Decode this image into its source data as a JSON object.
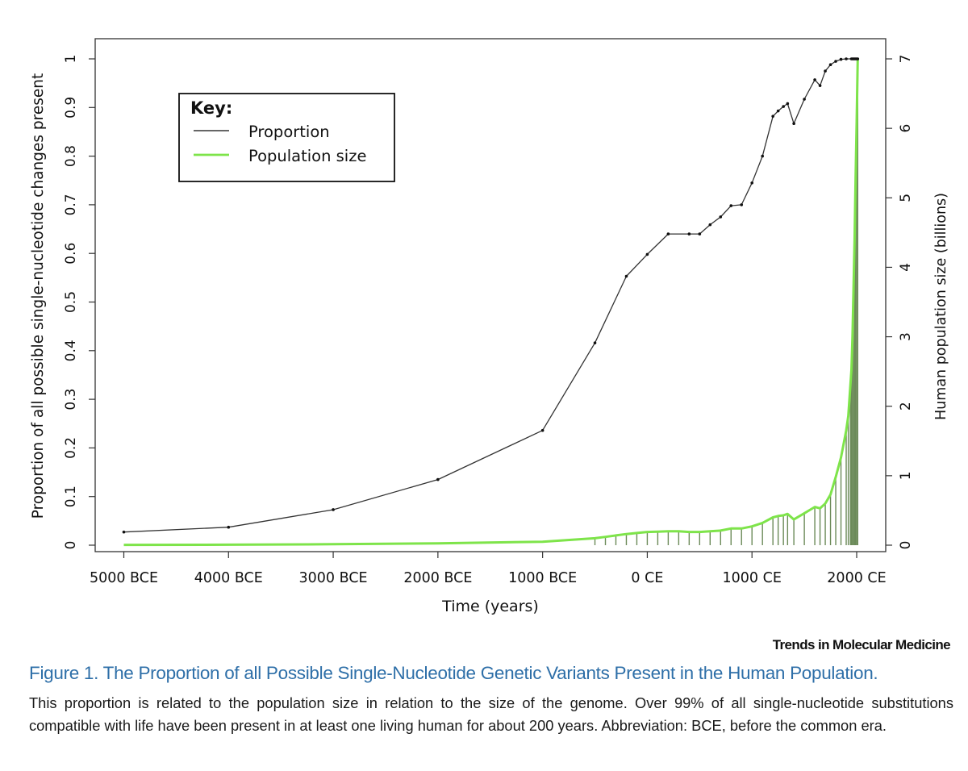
{
  "chart_data": {
    "type": "line",
    "xlabel": "Time (years)",
    "ylabel_left": "Proportion of all possible single-nucleotide changes present",
    "ylabel_right": "Human population size (billions)",
    "x_ticks": [
      {
        "value": -5000,
        "label": "5000 BCE"
      },
      {
        "value": -4000,
        "label": "4000 BCE"
      },
      {
        "value": -3000,
        "label": "3000 BCE"
      },
      {
        "value": -2000,
        "label": "2000 BCE"
      },
      {
        "value": -1000,
        "label": "1000 BCE"
      },
      {
        "value": 0,
        "label": "0 CE"
      },
      {
        "value": 1000,
        "label": "1000 CE"
      },
      {
        "value": 2000,
        "label": "2000 CE"
      }
    ],
    "xlim": [
      -5000,
      2000
    ],
    "ylim_left": [
      0,
      1
    ],
    "ylim_right": [
      0,
      7
    ],
    "y_ticks_left": [
      0,
      0.1,
      0.2,
      0.3,
      0.4,
      0.5,
      0.6,
      0.7,
      0.8,
      0.9,
      1
    ],
    "y_ticks_right": [
      0,
      1,
      2,
      3,
      4,
      5,
      6,
      7
    ],
    "legend": {
      "title": "Key:",
      "entries": [
        {
          "label": "Proportion",
          "color": "#333333"
        },
        {
          "label": "Population size",
          "color": "#7ee44a"
        }
      ],
      "position": "top-left"
    },
    "series": [
      {
        "name": "Proportion",
        "axis": "left",
        "color": "#333333",
        "x": [
          -5000,
          -4000,
          -3000,
          -2000,
          -1000,
          -500,
          -200,
          0,
          200,
          400,
          500,
          600,
          700,
          800,
          900,
          1000,
          1100,
          1200,
          1250,
          1300,
          1340,
          1400,
          1500,
          1600,
          1650,
          1700,
          1750,
          1800,
          1850,
          1900,
          1950,
          1960,
          1970,
          1980,
          1990,
          2000,
          2010
        ],
        "values": [
          0.027,
          0.037,
          0.073,
          0.135,
          0.236,
          0.416,
          0.553,
          0.598,
          0.64,
          0.64,
          0.64,
          0.659,
          0.675,
          0.698,
          0.7,
          0.745,
          0.8,
          0.882,
          0.893,
          0.902,
          0.908,
          0.867,
          0.917,
          0.957,
          0.945,
          0.975,
          0.988,
          0.995,
          0.999,
          1.0,
          1.0,
          1.0,
          1.0,
          1.0,
          1.0,
          1.0,
          1.0
        ]
      },
      {
        "name": "Population size",
        "axis": "right",
        "color": "#7ee44a",
        "x": [
          -5000,
          -4000,
          -3000,
          -2000,
          -1000,
          -500,
          -400,
          -300,
          -200,
          -100,
          0,
          100,
          200,
          300,
          400,
          500,
          600,
          700,
          800,
          900,
          1000,
          1100,
          1200,
          1250,
          1300,
          1340,
          1400,
          1500,
          1600,
          1650,
          1700,
          1750,
          1800,
          1850,
          1900,
          1920,
          1940,
          1950,
          1960,
          1970,
          1980,
          1990,
          2000,
          2010
        ],
        "values": [
          0.005,
          0.007,
          0.014,
          0.027,
          0.05,
          0.1,
          0.12,
          0.14,
          0.16,
          0.175,
          0.19,
          0.195,
          0.2,
          0.2,
          0.19,
          0.19,
          0.2,
          0.21,
          0.24,
          0.24,
          0.27,
          0.32,
          0.4,
          0.42,
          0.43,
          0.45,
          0.37,
          0.46,
          0.55,
          0.53,
          0.6,
          0.73,
          0.98,
          1.26,
          1.65,
          1.86,
          2.3,
          2.52,
          3.0,
          3.7,
          4.4,
          5.3,
          6.1,
          7.0
        ]
      }
    ]
  },
  "figure": {
    "journal": "Trends in Molecular Medicine",
    "title": "Figure 1. The Proportion of all Possible Single-Nucleotide Genetic Variants Present in the Human Population.",
    "caption": "This proportion is related to the population size in relation to the size of the genome. Over 99% of all single-nucleotide substitutions compatible with life have been present in at least one living human for about 200 years. Abbreviation: BCE, before the common era."
  }
}
